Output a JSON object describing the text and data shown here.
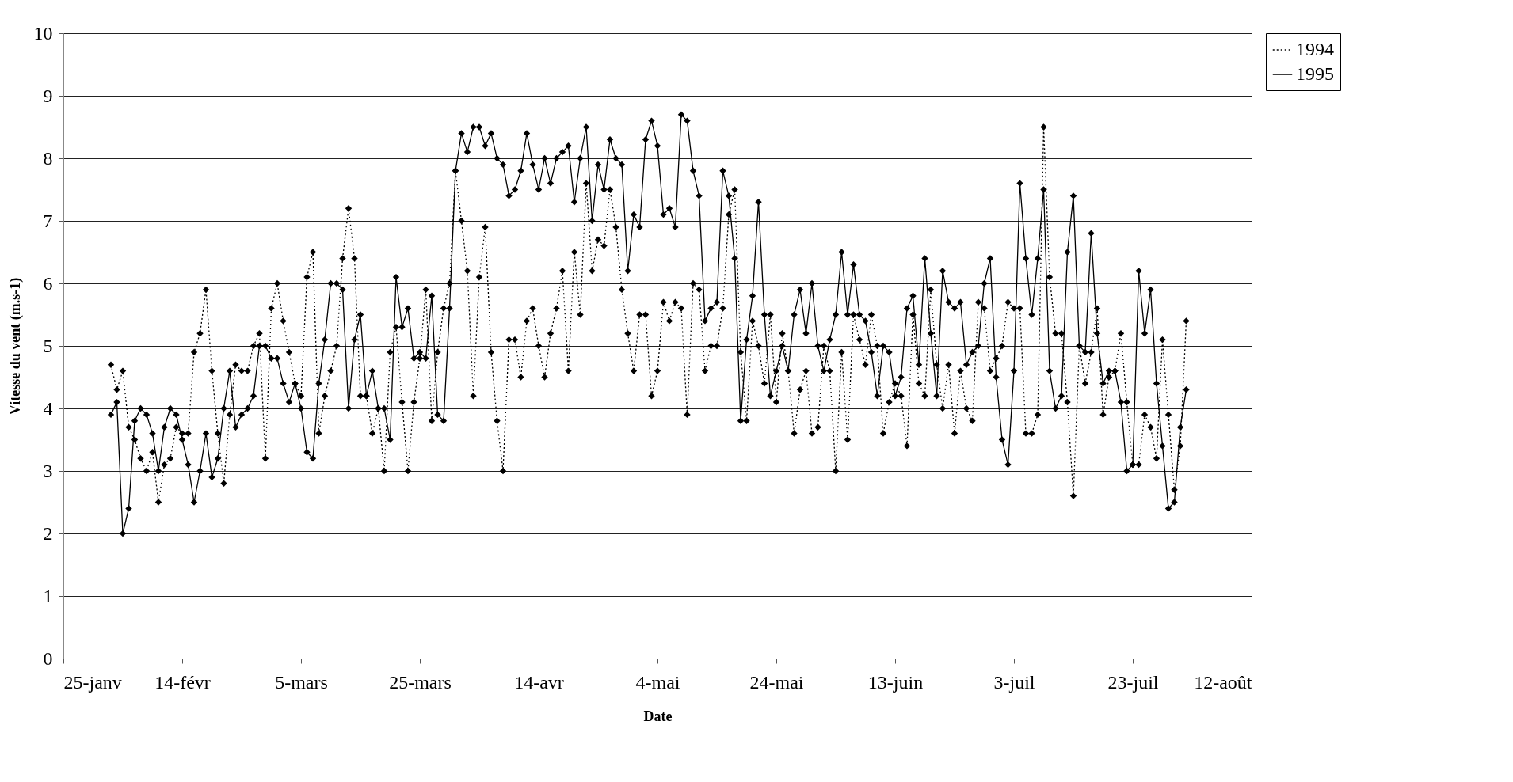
{
  "chart_data": {
    "type": "line",
    "xlabel": "Date",
    "ylabel": "Vitesse du vent (m.s-1)",
    "x": [
      "--02-02",
      "--02-03",
      "--02-04",
      "--02-05",
      "--02-06",
      "--02-07",
      "--02-08",
      "--02-09",
      "--02-10",
      "--02-11",
      "--02-12",
      "--02-13",
      "--02-14",
      "--02-15",
      "--02-16",
      "--02-17",
      "--02-18",
      "--02-19",
      "--02-20",
      "--02-21",
      "--02-22",
      "--02-23",
      "--02-24",
      "--02-25",
      "--02-26",
      "--02-27",
      "--02-28",
      "--02-29",
      "--03-01",
      "--03-02",
      "--03-03",
      "--03-04",
      "--03-05",
      "--03-06",
      "--03-07",
      "--03-08",
      "--03-09",
      "--03-10",
      "--03-11",
      "--03-12",
      "--03-13",
      "--03-14",
      "--03-15",
      "--03-16",
      "--03-17",
      "--03-18",
      "--03-19",
      "--03-20",
      "--03-21",
      "--03-22",
      "--03-23",
      "--03-24",
      "--03-25",
      "--03-26",
      "--03-27",
      "--03-28",
      "--03-29",
      "--03-30",
      "--03-31",
      "--04-01",
      "--04-02",
      "--04-03",
      "--04-04",
      "--04-05",
      "--04-06",
      "--04-07",
      "--04-08",
      "--04-09",
      "--04-10",
      "--04-11",
      "--04-12",
      "--04-13",
      "--04-14",
      "--04-15",
      "--04-16",
      "--04-17",
      "--04-18",
      "--04-19",
      "--04-20",
      "--04-21",
      "--04-22",
      "--04-23",
      "--04-24",
      "--04-25",
      "--04-26",
      "--04-27",
      "--04-28",
      "--04-29",
      "--04-30",
      "--05-01",
      "--05-02",
      "--05-03",
      "--05-04",
      "--05-05",
      "--05-06",
      "--05-07",
      "--05-08",
      "--05-09",
      "--05-10",
      "--05-11",
      "--05-12",
      "--05-13",
      "--05-14",
      "--05-15",
      "--05-16",
      "--05-17",
      "--05-18",
      "--05-19",
      "--05-20",
      "--05-21",
      "--05-22",
      "--05-23",
      "--05-24",
      "--05-25",
      "--05-26",
      "--05-27",
      "--05-28",
      "--05-29",
      "--05-30",
      "--05-31",
      "--06-01",
      "--06-02",
      "--06-03",
      "--06-04",
      "--06-05",
      "--06-06",
      "--06-07",
      "--06-08",
      "--06-09",
      "--06-10",
      "--06-11",
      "--06-12",
      "--06-13",
      "--06-14",
      "--06-15",
      "--06-16",
      "--06-17",
      "--06-18",
      "--06-19",
      "--06-20",
      "--06-21",
      "--06-22",
      "--06-23",
      "--06-24",
      "--06-25",
      "--06-26",
      "--06-27",
      "--06-28",
      "--06-29",
      "--06-30",
      "--07-01",
      "--07-02",
      "--07-03",
      "--07-04",
      "--07-05",
      "--07-06",
      "--07-07",
      "--07-08",
      "--07-09",
      "--07-10",
      "--07-11",
      "--07-12",
      "--07-13",
      "--07-14",
      "--07-15",
      "--07-16",
      "--07-17",
      "--07-18",
      "--07-19",
      "--07-20",
      "--07-21",
      "--07-22",
      "--07-23",
      "--07-24",
      "--07-25",
      "--07-26",
      "--07-27",
      "--07-28",
      "--07-29",
      "--07-30",
      "--07-31",
      "--08-01"
    ],
    "series": [
      {
        "name": "1994",
        "color": "#000000",
        "line_style": "dotted",
        "values": [
          4.7,
          4.3,
          4.6,
          3.7,
          3.5,
          3.2,
          3.0,
          3.3,
          2.5,
          3.1,
          3.2,
          3.7,
          3.6,
          3.6,
          4.9,
          5.2,
          5.9,
          4.6,
          3.6,
          2.8,
          3.9,
          4.7,
          4.6,
          4.6,
          5.0,
          5.2,
          3.2,
          5.6,
          6.0,
          5.4,
          4.9,
          4.4,
          4.2,
          6.1,
          6.5,
          3.6,
          4.2,
          4.6,
          5.0,
          6.4,
          7.2,
          6.4,
          4.2,
          4.2,
          3.6,
          4.0,
          3.0,
          4.9,
          5.3,
          4.1,
          3.0,
          4.1,
          4.8,
          5.9,
          3.8,
          4.9,
          5.6,
          6.0,
          7.8,
          7.0,
          6.2,
          4.2,
          6.1,
          6.9,
          4.9,
          3.8,
          3.0,
          5.1,
          5.1,
          4.5,
          5.4,
          5.6,
          5.0,
          4.5,
          5.2,
          5.6,
          6.2,
          4.6,
          6.5,
          5.5,
          7.6,
          6.2,
          6.7,
          6.6,
          7.5,
          6.9,
          5.9,
          5.2,
          4.6,
          5.5,
          5.5,
          4.2,
          4.6,
          5.7,
          5.4,
          5.7,
          5.6,
          3.9,
          6.0,
          5.9,
          4.6,
          5.0,
          5.0,
          5.6,
          7.1,
          7.5,
          4.9,
          3.8,
          5.4,
          5.0,
          4.4,
          5.5,
          4.1,
          5.2,
          4.6,
          3.6,
          4.3,
          4.6,
          3.6,
          3.7,
          5.0,
          4.6,
          3.0,
          4.9,
          3.5,
          5.5,
          5.1,
          4.7,
          5.5,
          5.0,
          3.6,
          4.1,
          4.4,
          4.2,
          3.4,
          5.5,
          4.4,
          4.2,
          5.9,
          4.7,
          4.0,
          4.7,
          3.6,
          4.6,
          4.0,
          3.8,
          5.7,
          5.6,
          4.6,
          4.8,
          5.0,
          5.7,
          5.6,
          5.6,
          3.6,
          3.6,
          3.9,
          8.5,
          6.1,
          5.2,
          5.2,
          4.1,
          2.6,
          5.0,
          4.4,
          4.9,
          5.6,
          3.9,
          4.5,
          4.6,
          5.2,
          4.1,
          3.1,
          3.1,
          3.9,
          3.7,
          3.2,
          5.1,
          3.9,
          2.7,
          3.4,
          5.4
        ]
      },
      {
        "name": "1995",
        "color": "#000000",
        "line_style": "solid",
        "values": [
          3.9,
          4.1,
          2.0,
          2.4,
          3.8,
          4.0,
          3.9,
          3.6,
          3.0,
          3.7,
          4.0,
          3.9,
          3.5,
          3.1,
          2.5,
          3.0,
          3.6,
          2.9,
          3.2,
          4.0,
          4.6,
          3.7,
          3.9,
          4.0,
          4.2,
          5.0,
          5.0,
          4.8,
          4.8,
          4.4,
          4.1,
          4.4,
          4.0,
          3.3,
          3.2,
          4.4,
          5.1,
          6.0,
          6.0,
          5.9,
          4.0,
          5.1,
          5.5,
          4.2,
          4.6,
          4.0,
          4.0,
          3.5,
          6.1,
          5.3,
          5.6,
          4.8,
          4.9,
          4.8,
          5.8,
          3.9,
          3.8,
          5.6,
          7.8,
          8.4,
          8.1,
          8.5,
          8.5,
          8.2,
          8.4,
          8.0,
          7.9,
          7.4,
          7.5,
          7.8,
          8.4,
          7.9,
          7.5,
          8.0,
          7.6,
          8.0,
          8.1,
          8.2,
          7.3,
          8.0,
          8.5,
          7.0,
          7.9,
          7.5,
          8.3,
          8.0,
          7.9,
          6.2,
          7.1,
          6.9,
          8.3,
          8.6,
          8.2,
          7.1,
          7.2,
          6.9,
          8.7,
          8.6,
          7.8,
          7.4,
          5.4,
          5.6,
          5.7,
          7.8,
          7.4,
          6.4,
          3.8,
          5.1,
          5.8,
          7.3,
          5.5,
          4.2,
          4.6,
          5.0,
          4.6,
          5.5,
          5.9,
          5.2,
          6.0,
          5.0,
          4.6,
          5.1,
          5.5,
          6.5,
          5.5,
          6.3,
          5.5,
          5.4,
          4.9,
          4.2,
          5.0,
          4.9,
          4.2,
          4.5,
          5.6,
          5.8,
          4.7,
          6.4,
          5.2,
          4.2,
          6.2,
          5.7,
          5.6,
          5.7,
          4.7,
          4.9,
          5.0,
          6.0,
          6.4,
          4.5,
          3.5,
          3.1,
          4.6,
          7.6,
          6.4,
          5.5,
          6.4,
          7.5,
          4.6,
          4.0,
          4.2,
          6.5,
          7.4,
          5.0,
          4.9,
          6.8,
          5.2,
          4.4,
          4.6,
          4.6,
          4.1,
          3.0,
          3.1,
          6.2,
          5.2,
          5.9,
          4.4,
          3.4,
          2.4,
          2.5,
          3.7,
          4.3
        ]
      }
    ],
    "xlim": [
      "--01-25",
      "--08-12"
    ],
    "xticks": [
      {
        "value": "--01-25",
        "label": "25-janv"
      },
      {
        "value": "--02-14",
        "label": "14-févr"
      },
      {
        "value": "--03-05",
        "label": "5-mars"
      },
      {
        "value": "--03-25",
        "label": "25-mars"
      },
      {
        "value": "--04-14",
        "label": "14-avr"
      },
      {
        "value": "--05-04",
        "label": "4-mai"
      },
      {
        "value": "--05-24",
        "label": "24-mai"
      },
      {
        "value": "--06-13",
        "label": "13-juin"
      },
      {
        "value": "--07-03",
        "label": "3-juil"
      },
      {
        "value": "--07-23",
        "label": "23-juil"
      },
      {
        "value": "--08-12",
        "label": "12-août"
      }
    ],
    "ylim": [
      0,
      10
    ],
    "yticks": [
      0,
      1,
      2,
      3,
      4,
      5,
      6,
      7,
      8,
      9,
      10
    ],
    "grid": "y",
    "legend": "right",
    "marker": "diamond"
  }
}
